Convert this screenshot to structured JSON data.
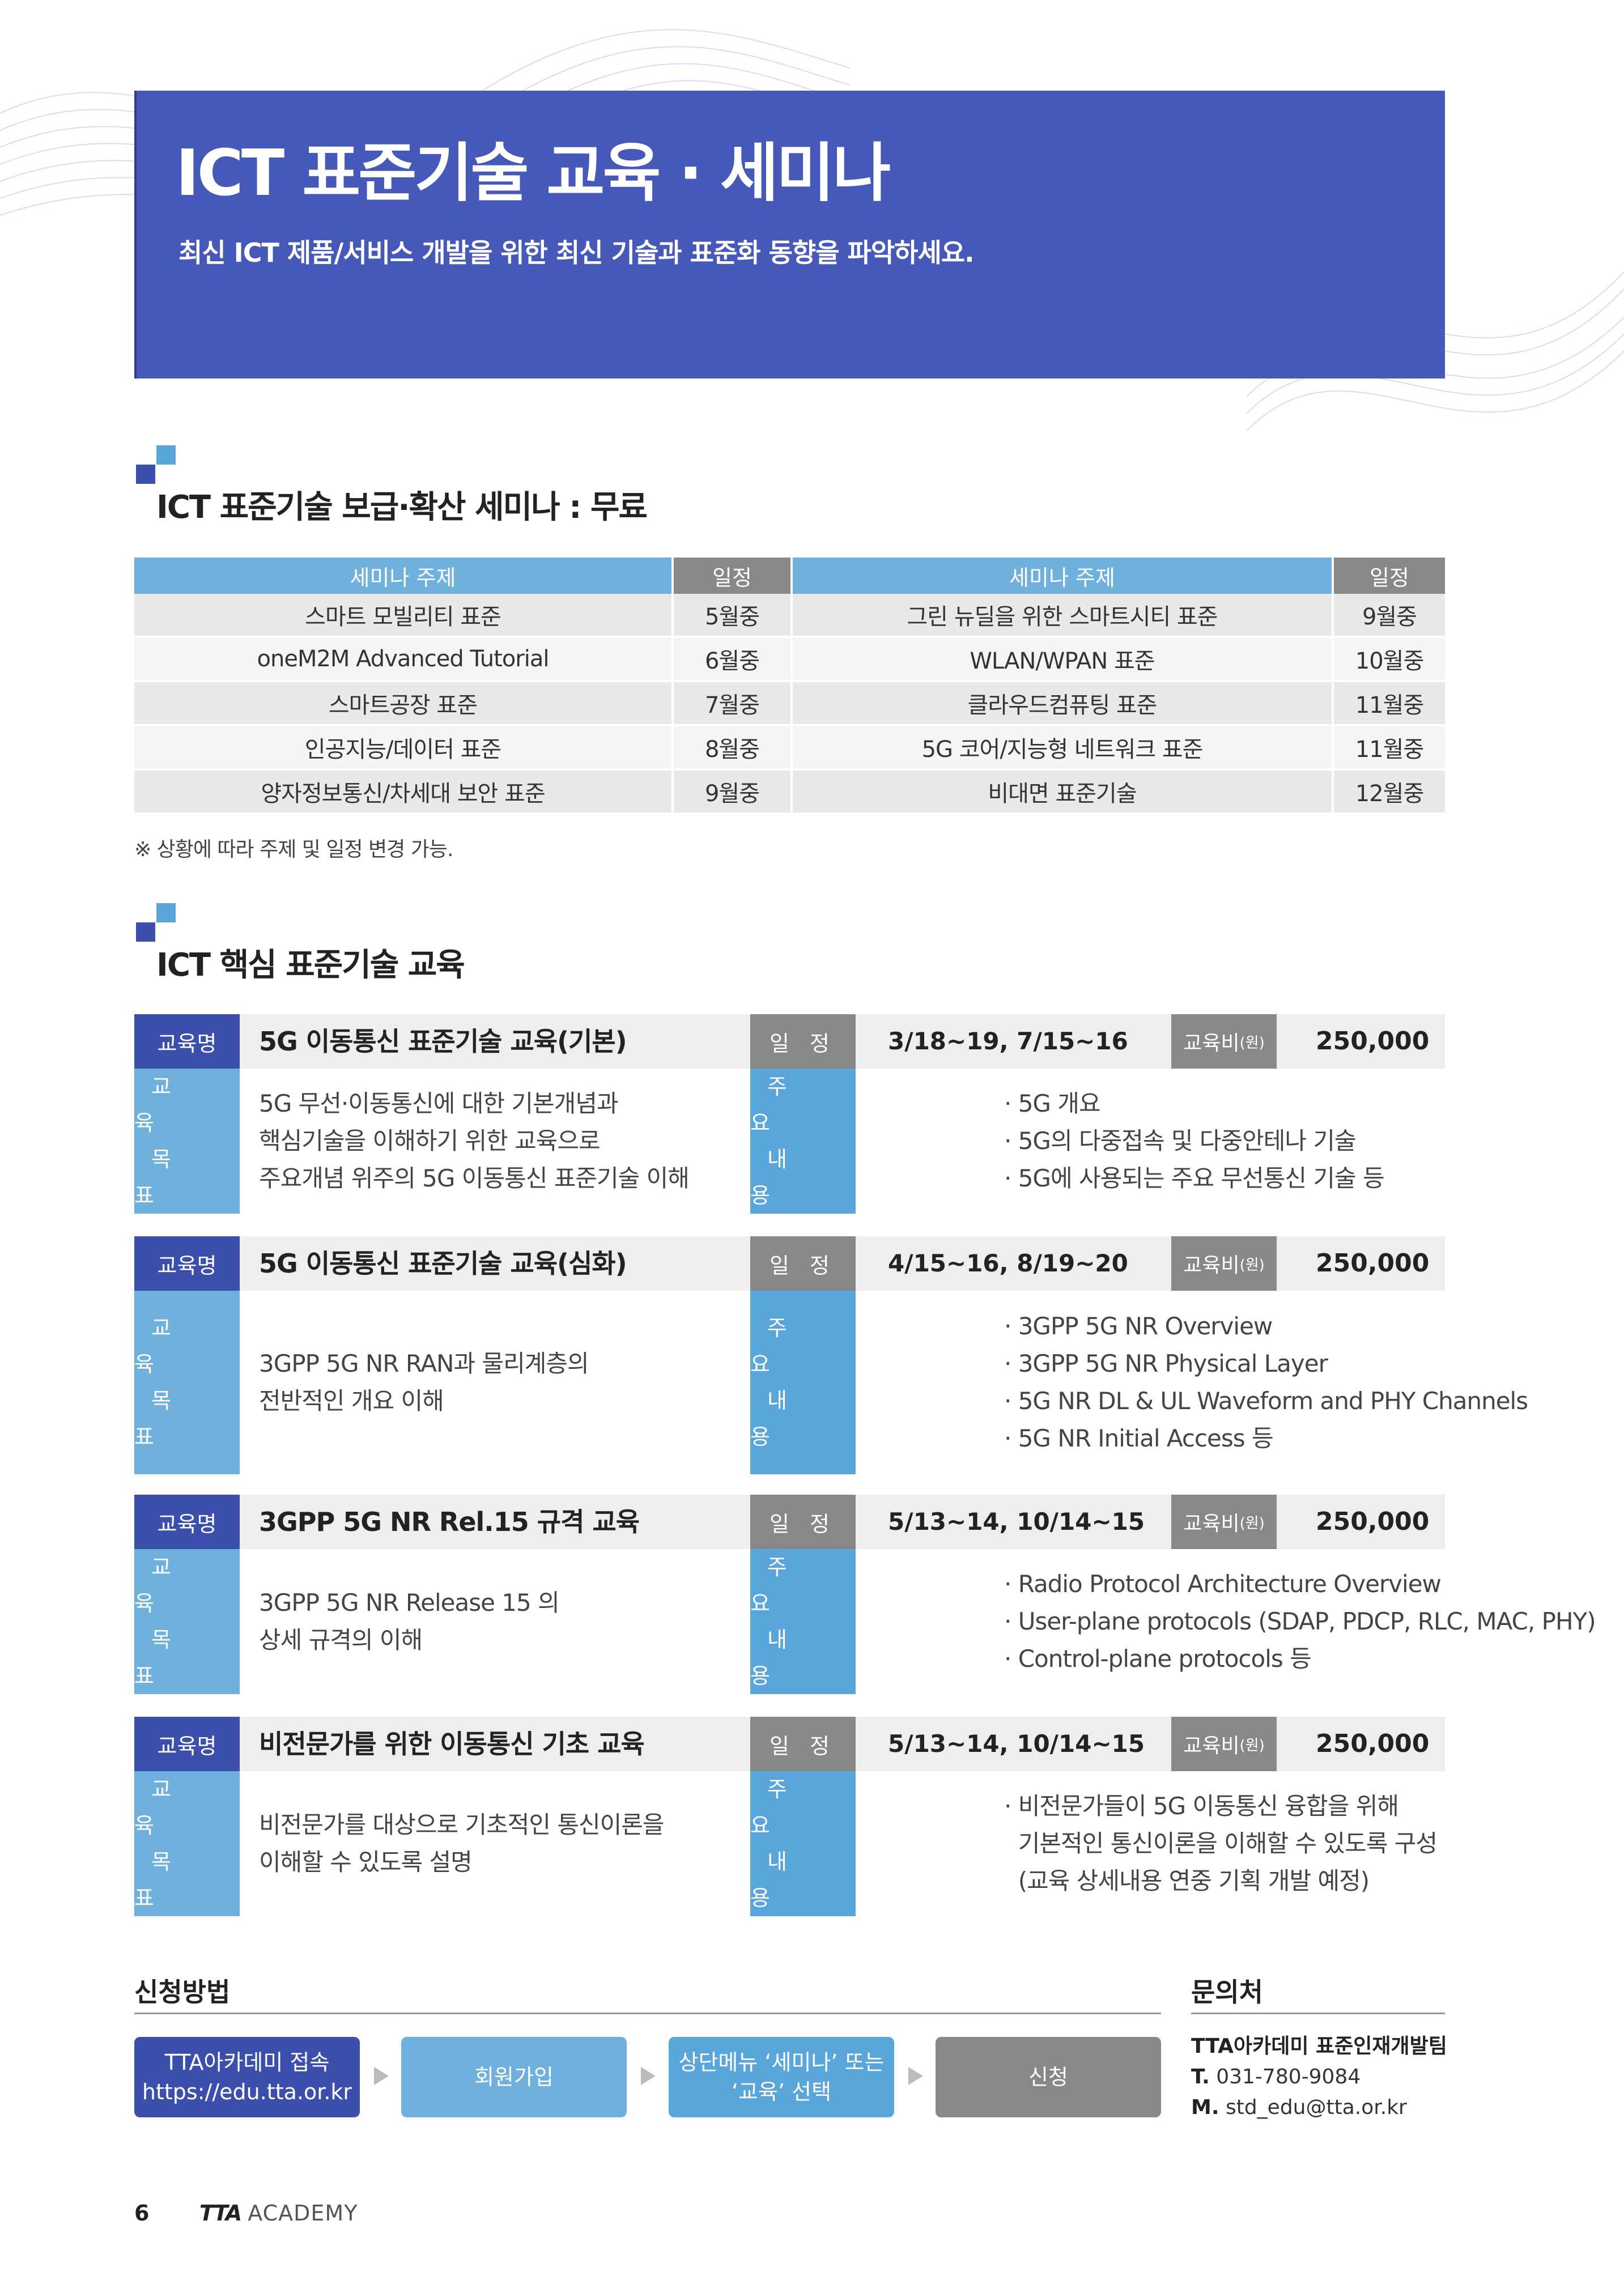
{
  "banner": {
    "title": "ICT 표준기술 교육 · 세미나",
    "subtitle": "최신 ICT 제품/서비스 개발을 위한 최신 기술과 표준화 동향을 파악하세요."
  },
  "seminar": {
    "title": "ICT 표준기술 보급·확산 세미나 : 무료",
    "headers": [
      "세미나 주제",
      "일정",
      "세미나 주제",
      "일정"
    ],
    "rows": [
      [
        "스마트 모빌리티 표준",
        "5월중",
        "그린 뉴딜을 위한 스마트시티 표준",
        "9월중"
      ],
      [
        "oneM2M Advanced Tutorial",
        "6월중",
        "WLAN/WPAN 표준",
        "10월중"
      ],
      [
        "스마트공장 표준",
        "7월중",
        "클라우드컴퓨팅 표준",
        "11월중"
      ],
      [
        "인공지능/데이터 표준",
        "8월중",
        "5G 코어/지능형 네트워크 표준",
        "11월중"
      ],
      [
        "양자정보통신/차세대 보안 표준",
        "9월중",
        "비대면 표준기술",
        "12월중"
      ]
    ],
    "note": "※ 상황에 따라 주제 및 일정 변경 가능."
  },
  "education": {
    "title": "ICT 핵심 표준기술 교육",
    "labels": {
      "name": "교육명",
      "schedule": "일 정",
      "fee": "교육비",
      "fee_unit": "(원)",
      "goal_line1": "교 육",
      "goal_line2": "목 표",
      "content_line1": "주 요",
      "content_line2": "내 용"
    },
    "courses": [
      {
        "name": "5G 이동통신 표준기술 교육(기본)",
        "schedule": "3/18~19, 7/15~16",
        "fee": "250,000",
        "goal": [
          "5G 무선·이동통신에 대한 기본개념과",
          "핵심기술을 이해하기 위한 교육으로",
          "주요개념 위주의 5G 이동통신 표준기술 이해"
        ],
        "content": [
          "· 5G 개요",
          "· 5G의 다중접속 및 다중안테나 기술",
          "· 5G에 사용되는 주요 무선통신 기술 등"
        ]
      },
      {
        "name": "5G 이동통신 표준기술 교육(심화)",
        "schedule": "4/15~16, 8/19~20",
        "fee": "250,000",
        "goal": [
          "3GPP 5G NR RAN과 물리계층의",
          "전반적인 개요 이해"
        ],
        "content": [
          "· 3GPP 5G NR Overview",
          "· 3GPP 5G NR Physical Layer",
          "· 5G NR DL & UL Waveform and PHY Channels",
          "· 5G NR Initial Access 등"
        ]
      },
      {
        "name": "3GPP 5G NR Rel.15 규격 교육",
        "schedule": "5/13~14, 10/14~15",
        "fee": "250,000",
        "goal": [
          "3GPP 5G NR Release 15 의",
          "상세 규격의 이해"
        ],
        "content": [
          "· Radio Protocol Architecture Overview",
          "· User-plane protocols (SDAP, PDCP, RLC, MAC, PHY)",
          "· Control-plane protocols 등"
        ]
      },
      {
        "name": "비전문가를 위한 이동통신 기초 교육",
        "schedule": "5/13~14, 10/14~15",
        "fee": "250,000",
        "goal": [
          "비전문가를 대상으로 기초적인 통신이론을",
          "이해할 수 있도록 설명"
        ],
        "content": [
          "· 비전문가들이 5G 이동통신 융합을 위해",
          "  기본적인 통신이론을 이해할 수 있도록 구성",
          "  (교육 상세내용 연중 기획 개발 예정)"
        ]
      }
    ]
  },
  "apply": {
    "title": "신청방법",
    "steps": [
      [
        "TTA아카데미 접속",
        "https://edu.tta.or.kr"
      ],
      [
        "회원가입"
      ],
      [
        "상단메뉴 ‘세미나’ 또는",
        "‘교육’ 선택"
      ],
      [
        "신청"
      ]
    ],
    "colors": [
      "#3d4fad",
      "#6fb0dc",
      "#5aa6db",
      "#888888"
    ]
  },
  "contact": {
    "title": "문의처",
    "team": "TTA아카데미 표준인재개발팀",
    "tel_label": "T.",
    "tel": "031-780-9084",
    "mail_label": "M.",
    "mail": "std_edu@tta.or.kr"
  },
  "footer": {
    "page_number": "6",
    "logo_mark": "TTA",
    "logo_text": "ACADEMY"
  }
}
